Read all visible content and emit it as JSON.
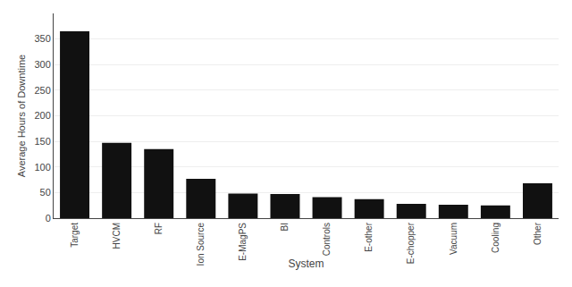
{
  "chart_data": {
    "type": "bar",
    "xlabel": "System",
    "ylabel": "Average Hours of Downtime",
    "categories": [
      "Target",
      "HVCM",
      "RF",
      "Ion Source",
      "E-MagPS",
      "BI",
      "Controls",
      "E-other",
      "E-chopper",
      "Vacuum",
      "Cooling",
      "Other"
    ],
    "values": [
      365,
      147,
      135,
      77,
      48,
      47,
      41,
      37,
      28,
      26,
      25,
      68
    ],
    "color": "#111111",
    "ylim": [
      0,
      400
    ],
    "yticks": [
      0,
      50,
      100,
      150,
      200,
      250,
      300,
      350
    ],
    "grid": true
  }
}
